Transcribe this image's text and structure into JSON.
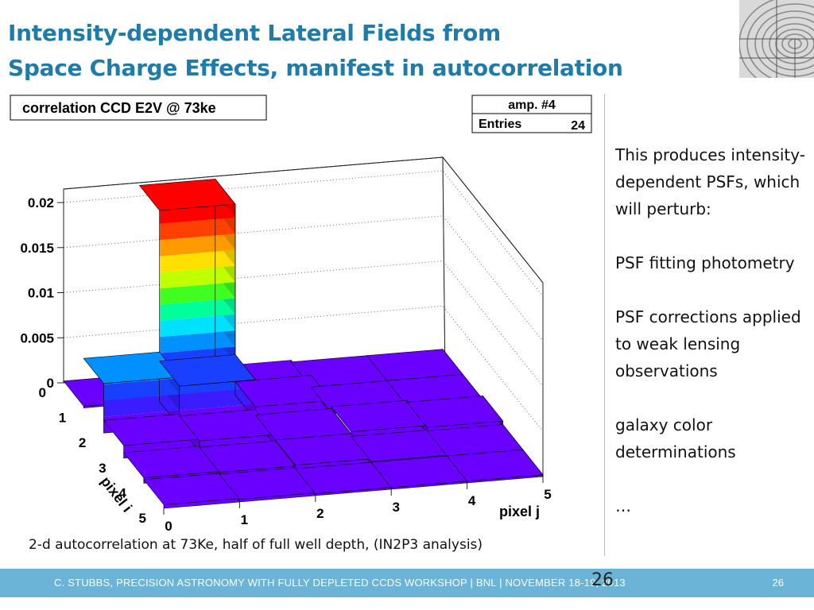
{
  "slide": {
    "title_line1": "Intensity-dependent Lateral Fields from",
    "title_line2": "Space Charge Effects, manifest in autocorrelation",
    "caption": "2-d autocorrelation at 73Ke, half of full well depth, (IN2P3 analysis)",
    "side_items": [
      "This produces intensity-dependent PSFs, which will perturb:",
      "PSF fitting photometry",
      "PSF corrections applied to weak lensing observations",
      "galaxy color determinations",
      "…"
    ],
    "footer_text": "C. STUBBS, PRECISION ASTRONOMY WITH FULLY DEPLETED CCDS WORKSHOP  | BNL | NOVEMBER 18-19, 2013",
    "slide_number": "26",
    "overlay_number": "26"
  },
  "chart_data": {
    "type": "lego3d",
    "title": "correlation CCD E2V @ 73ke",
    "stats": {
      "name": "amp. #4",
      "entries_label": "Entries",
      "entries": "24"
    },
    "xlabel": "pixel j",
    "ylabel": "pixel i",
    "x_ticks": [
      "0",
      "1",
      "2",
      "3",
      "4",
      "5"
    ],
    "y_ticks": [
      "0",
      "1",
      "2",
      "3",
      "4",
      "5"
    ],
    "z_ticks": [
      "0",
      "0.005",
      "0.01",
      "0.015",
      "0.02"
    ],
    "zlim": [
      0,
      0.0215
    ],
    "values": [
      [
        0.0,
        0.0212,
        0.0004,
        0.0001,
        0.0,
        0.0
      ],
      [
        0.0055,
        0.0045,
        0.0015,
        0.0,
        0.0,
        0.0
      ],
      [
        0.0014,
        0.0012,
        0.0006,
        0.0008,
        0.0006,
        0.0
      ],
      [
        0.0006,
        0.0005,
        0.0006,
        0.0003,
        0.0,
        0.0
      ],
      [
        0.0004,
        0.0003,
        0.0001,
        0.0,
        0.0,
        0.0
      ],
      [
        0.0002,
        0.0002,
        0.0,
        0.0,
        0.0,
        0.0
      ]
    ],
    "colors": {
      "palette": [
        "#6a00ff",
        "#3a1cff",
        "#1a40ff",
        "#0090ff",
        "#00e0ff",
        "#00ff9a",
        "#40ff20",
        "#c0ff00",
        "#ffe000",
        "#ff9a00",
        "#ff4000",
        "#ff0000"
      ]
    }
  }
}
